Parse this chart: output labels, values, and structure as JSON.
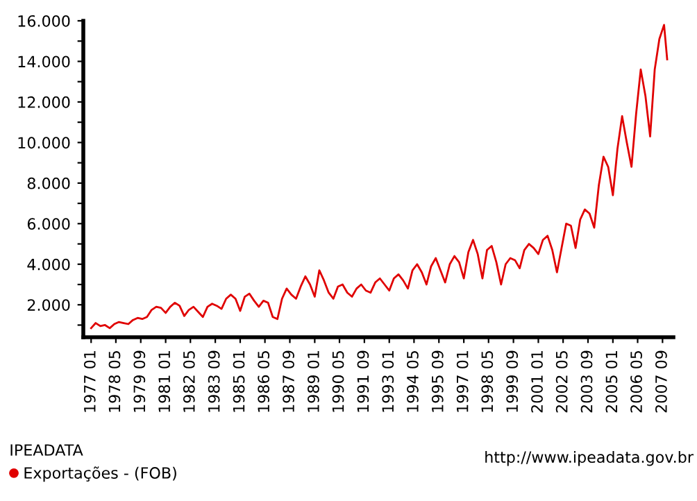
{
  "chart_data": {
    "type": "line",
    "x": [
      "1977-01",
      "1977-04",
      "1977-07",
      "1977-10",
      "1978-01",
      "1978-04",
      "1978-07",
      "1978-10",
      "1979-01",
      "1979-04",
      "1979-07",
      "1979-10",
      "1980-01",
      "1980-04",
      "1980-07",
      "1980-10",
      "1981-01",
      "1981-04",
      "1981-07",
      "1981-10",
      "1982-01",
      "1982-04",
      "1982-07",
      "1982-10",
      "1983-01",
      "1983-04",
      "1983-07",
      "1983-10",
      "1984-01",
      "1984-04",
      "1984-07",
      "1984-10",
      "1985-01",
      "1985-04",
      "1985-07",
      "1985-10",
      "1986-01",
      "1986-04",
      "1986-07",
      "1986-10",
      "1987-01",
      "1987-04",
      "1987-07",
      "1987-10",
      "1988-01",
      "1988-04",
      "1988-07",
      "1988-10",
      "1989-01",
      "1989-04",
      "1989-07",
      "1989-10",
      "1990-01",
      "1990-04",
      "1990-07",
      "1990-10",
      "1991-01",
      "1991-04",
      "1991-07",
      "1991-10",
      "1992-01",
      "1992-04",
      "1992-07",
      "1992-10",
      "1993-01",
      "1993-04",
      "1993-07",
      "1993-10",
      "1994-01",
      "1994-04",
      "1994-07",
      "1994-10",
      "1995-01",
      "1995-04",
      "1995-07",
      "1995-10",
      "1996-01",
      "1996-04",
      "1996-07",
      "1996-10",
      "1997-01",
      "1997-04",
      "1997-07",
      "1997-10",
      "1998-01",
      "1998-04",
      "1998-07",
      "1998-10",
      "1999-01",
      "1999-04",
      "1999-07",
      "1999-10",
      "2000-01",
      "2000-04",
      "2000-07",
      "2000-10",
      "2001-01",
      "2001-04",
      "2001-07",
      "2001-10",
      "2002-01",
      "2002-04",
      "2002-07",
      "2002-10",
      "2003-01",
      "2003-04",
      "2003-07",
      "2003-10",
      "2004-01",
      "2004-04",
      "2004-07",
      "2004-10",
      "2005-01",
      "2005-04",
      "2005-07",
      "2005-10",
      "2006-01",
      "2006-04",
      "2006-07",
      "2006-10",
      "2007-01",
      "2007-04",
      "2007-07",
      "2007-10",
      "2007-12"
    ],
    "series": [
      {
        "name": "Exportações - (FOB)",
        "color": "#e00000",
        "values": [
          850,
          1100,
          950,
          1000,
          850,
          1050,
          1150,
          1100,
          1050,
          1250,
          1350,
          1300,
          1400,
          1750,
          1900,
          1850,
          1600,
          1900,
          2100,
          1950,
          1450,
          1750,
          1900,
          1650,
          1400,
          1900,
          2050,
          1950,
          1800,
          2300,
          2500,
          2300,
          1700,
          2400,
          2550,
          2200,
          1900,
          2200,
          2100,
          1400,
          1300,
          2300,
          2800,
          2500,
          2300,
          2900,
          3400,
          3000,
          2400,
          3700,
          3200,
          2600,
          2300,
          2900,
          3000,
          2600,
          2400,
          2800,
          3000,
          2700,
          2600,
          3100,
          3300,
          3000,
          2700,
          3300,
          3500,
          3200,
          2800,
          3700,
          4000,
          3600,
          3000,
          3900,
          4300,
          3700,
          3100,
          4000,
          4400,
          4100,
          3300,
          4600,
          5200,
          4500,
          3300,
          4700,
          4900,
          4100,
          3000,
          4000,
          4300,
          4200,
          3800,
          4700,
          5000,
          4800,
          4500,
          5200,
          5400,
          4700,
          3600,
          4800,
          6000,
          5900,
          4800,
          6200,
          6700,
          6500,
          5800,
          7900,
          9300,
          8800,
          7400,
          9700,
          11300,
          10000,
          8800,
          11400,
          13600,
          12300,
          10300,
          13600,
          15100,
          15800,
          14100
        ]
      }
    ],
    "xlim": [
      "1976-08",
      "2008-04"
    ],
    "xticks": [
      {
        "value": "1977-01",
        "label": "1977 01"
      },
      {
        "value": "1978-05",
        "label": "1978 05"
      },
      {
        "value": "1979-09",
        "label": "1979 09"
      },
      {
        "value": "1981-01",
        "label": "1981 01"
      },
      {
        "value": "1982-05",
        "label": "1982 05"
      },
      {
        "value": "1983-09",
        "label": "1983 09"
      },
      {
        "value": "1985-01",
        "label": "1985 01"
      },
      {
        "value": "1986-05",
        "label": "1986 05"
      },
      {
        "value": "1987-09",
        "label": "1987 09"
      },
      {
        "value": "1989-01",
        "label": "1989 01"
      },
      {
        "value": "1990-05",
        "label": "1990 05"
      },
      {
        "value": "1991-09",
        "label": "1991 09"
      },
      {
        "value": "1993-01",
        "label": "1993 01"
      },
      {
        "value": "1994-05",
        "label": "1994 05"
      },
      {
        "value": "1995-09",
        "label": "1995 09"
      },
      {
        "value": "1997-01",
        "label": "1997 01"
      },
      {
        "value": "1998-05",
        "label": "1998 05"
      },
      {
        "value": "1999-09",
        "label": "1999 09"
      },
      {
        "value": "2001-01",
        "label": "2001 01"
      },
      {
        "value": "2002-05",
        "label": "2002 05"
      },
      {
        "value": "2003-09",
        "label": "2003 09"
      },
      {
        "value": "2005-01",
        "label": "2005 01"
      },
      {
        "value": "2006-05",
        "label": "2006 05"
      },
      {
        "value": "2007-09",
        "label": "2007 09"
      }
    ],
    "ylim": [
      400,
      16000
    ],
    "yticks": [
      {
        "value": 1000,
        "label": null
      },
      {
        "value": 2000,
        "label": "2.000"
      },
      {
        "value": 3000,
        "label": null
      },
      {
        "value": 4000,
        "label": "4.000"
      },
      {
        "value": 5000,
        "label": null
      },
      {
        "value": 6000,
        "label": "6.000"
      },
      {
        "value": 7000,
        "label": null
      },
      {
        "value": 8000,
        "label": "8.000"
      },
      {
        "value": 9000,
        "label": null
      },
      {
        "value": 10000,
        "label": "10.000"
      },
      {
        "value": 11000,
        "label": null
      },
      {
        "value": 12000,
        "label": "12.000"
      },
      {
        "value": 13000,
        "label": null
      },
      {
        "value": 14000,
        "label": "14.000"
      },
      {
        "value": 15000,
        "label": null
      },
      {
        "value": 16000,
        "label": "16.000"
      }
    ],
    "legend": "bottom left",
    "legend_title": "IPEADATA",
    "annotations": [
      "http://www.ipeadata.gov.br"
    ],
    "marker": "none",
    "line_style": "solid",
    "grid": false
  }
}
